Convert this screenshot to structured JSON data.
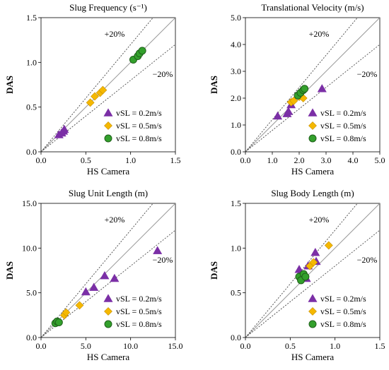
{
  "colors": {
    "s02": "#7B2FA6",
    "s05": "#F5B800",
    "s05_stroke": "#C58F00",
    "s08": "#33A02C",
    "s08_stroke": "#1F5F1A"
  },
  "legend": [
    "vSL = 0.2m/s",
    "vSL = 0.5m/s",
    "vSL = 0.8m/s"
  ],
  "chart_data": [
    {
      "type": "scatter",
      "title": "Slug Frequency (s⁻¹)",
      "xlabel": "HS Camera",
      "ylabel": "DAS",
      "xlim": [
        0,
        1.5
      ],
      "ylim": [
        0,
        1.5
      ],
      "xticks": [
        "0.0",
        "0.5",
        "1.0",
        "1.5"
      ],
      "yticks": [
        "0.0",
        "0.5",
        "1.0",
        "1.5"
      ],
      "plus_label": "+20%",
      "minus_label": "−20%",
      "series": [
        {
          "name": "vSL = 0.2m/s",
          "marker": "triangle",
          "points": [
            [
              0.2,
              0.19
            ],
            [
              0.23,
              0.21
            ],
            [
              0.25,
              0.23
            ],
            [
              0.26,
              0.25
            ]
          ]
        },
        {
          "name": "vSL = 0.5m/s",
          "marker": "diamond",
          "points": [
            [
              0.55,
              0.55
            ],
            [
              0.6,
              0.62
            ],
            [
              0.66,
              0.66
            ],
            [
              0.69,
              0.69
            ]
          ]
        },
        {
          "name": "vSL = 0.8m/s",
          "marker": "circle",
          "points": [
            [
              1.03,
              1.03
            ],
            [
              1.08,
              1.07
            ],
            [
              1.1,
              1.1
            ],
            [
              1.13,
              1.13
            ]
          ]
        }
      ]
    },
    {
      "type": "scatter",
      "title": "Translational Velocity (m/s)",
      "xlabel": "HS Camera",
      "ylabel": "DAS",
      "xlim": [
        0,
        5
      ],
      "ylim": [
        0,
        5
      ],
      "xticks": [
        "0.0",
        "1.0",
        "2.0",
        "3.0",
        "4.0",
        "5.0"
      ],
      "yticks": [
        "0.0",
        "1.0",
        "2.0",
        "3.0",
        "4.0",
        "5.0"
      ],
      "plus_label": "+20%",
      "minus_label": "−20%",
      "series": [
        {
          "name": "vSL = 0.2m/s",
          "marker": "triangle",
          "points": [
            [
              1.2,
              1.33
            ],
            [
              1.55,
              1.42
            ],
            [
              1.6,
              1.5
            ],
            [
              1.7,
              1.75
            ],
            [
              2.85,
              2.35
            ]
          ]
        },
        {
          "name": "vSL = 0.5m/s",
          "marker": "diamond",
          "points": [
            [
              1.7,
              1.85
            ],
            [
              1.8,
              1.9
            ],
            [
              2.0,
              2.05
            ],
            [
              2.15,
              2.0
            ]
          ]
        },
        {
          "name": "vSL = 0.8m/s",
          "marker": "circle",
          "points": [
            [
              1.95,
              2.1
            ],
            [
              2.05,
              2.2
            ],
            [
              2.15,
              2.3
            ],
            [
              2.2,
              2.35
            ]
          ]
        }
      ]
    },
    {
      "type": "scatter",
      "title": "Slug Unit Length (m)",
      "xlabel": "HS Camera",
      "ylabel": "DAS",
      "xlim": [
        0,
        15
      ],
      "ylim": [
        0,
        15
      ],
      "xticks": [
        "0.0",
        "5.0",
        "10.0",
        "15.0"
      ],
      "yticks": [
        "0.0",
        "5.0",
        "10.0",
        "15.0"
      ],
      "plus_label": "+20%",
      "minus_label": "−20%",
      "series": [
        {
          "name": "vSL = 0.2m/s",
          "marker": "triangle",
          "points": [
            [
              5.0,
              5.1
            ],
            [
              5.9,
              5.6
            ],
            [
              7.1,
              6.9
            ],
            [
              8.2,
              6.6
            ],
            [
              13.0,
              9.7
            ]
          ]
        },
        {
          "name": "vSL = 0.5m/s",
          "marker": "diamond",
          "points": [
            [
              2.6,
              2.5
            ],
            [
              2.8,
              2.8
            ],
            [
              4.3,
              3.6
            ]
          ]
        },
        {
          "name": "vSL = 0.8m/s",
          "marker": "circle",
          "points": [
            [
              1.6,
              1.6
            ],
            [
              1.8,
              1.8
            ],
            [
              2.0,
              1.7
            ]
          ]
        }
      ]
    },
    {
      "type": "scatter",
      "title": "Slug Body Length (m)",
      "xlabel": "HS Camera",
      "ylabel": "DAS",
      "xlim": [
        0,
        1.5
      ],
      "ylim": [
        0,
        1.5
      ],
      "xticks": [
        "0.0",
        "0.5",
        "1.0",
        "1.5"
      ],
      "yticks": [
        "0.0",
        "0.5",
        "1.0",
        "1.5"
      ],
      "plus_label": "+20%",
      "minus_label": "−20%",
      "series": [
        {
          "name": "vSL = 0.2m/s",
          "marker": "triangle",
          "points": [
            [
              0.6,
              0.76
            ],
            [
              0.68,
              0.66
            ],
            [
              0.7,
              0.8
            ],
            [
              0.78,
              0.95
            ],
            [
              0.79,
              0.85
            ]
          ]
        },
        {
          "name": "vSL = 0.5m/s",
          "marker": "diamond",
          "points": [
            [
              0.72,
              0.8
            ],
            [
              0.76,
              0.84
            ],
            [
              0.93,
              1.03
            ]
          ]
        },
        {
          "name": "vSL = 0.8m/s",
          "marker": "circle",
          "points": [
            [
              0.6,
              0.68
            ],
            [
              0.62,
              0.64
            ],
            [
              0.65,
              0.71
            ],
            [
              0.67,
              0.68
            ]
          ]
        }
      ]
    }
  ]
}
